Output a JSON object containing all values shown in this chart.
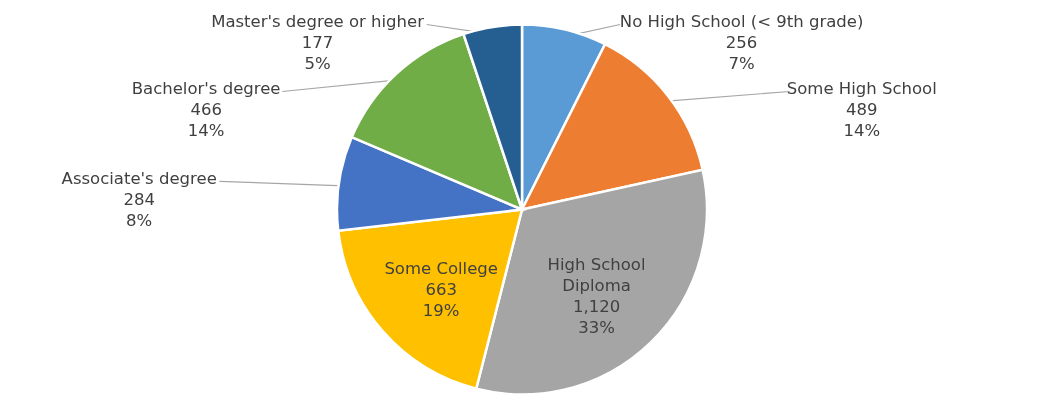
{
  "chart_data": {
    "type": "pie",
    "categories": [
      "No High School (< 9th grade)",
      "Some High School",
      "High School Diploma",
      "Some College",
      "Associate's degree",
      "Bachelor's degree",
      "Master's degree or higher"
    ],
    "values": [
      256,
      489,
      1120,
      663,
      284,
      466,
      177
    ],
    "value_labels": [
      "256\n7%",
      "489\n14%",
      "1,120\n33%",
      "663\n19%",
      "284\n8%",
      "466\n14%",
      "177\n5%"
    ],
    "colors": [
      "#5b9bd5",
      "#ed7d31",
      "#a5a5a5",
      "#ffc000",
      "#4472c4",
      "#70ad47",
      "#255e91"
    ]
  }
}
